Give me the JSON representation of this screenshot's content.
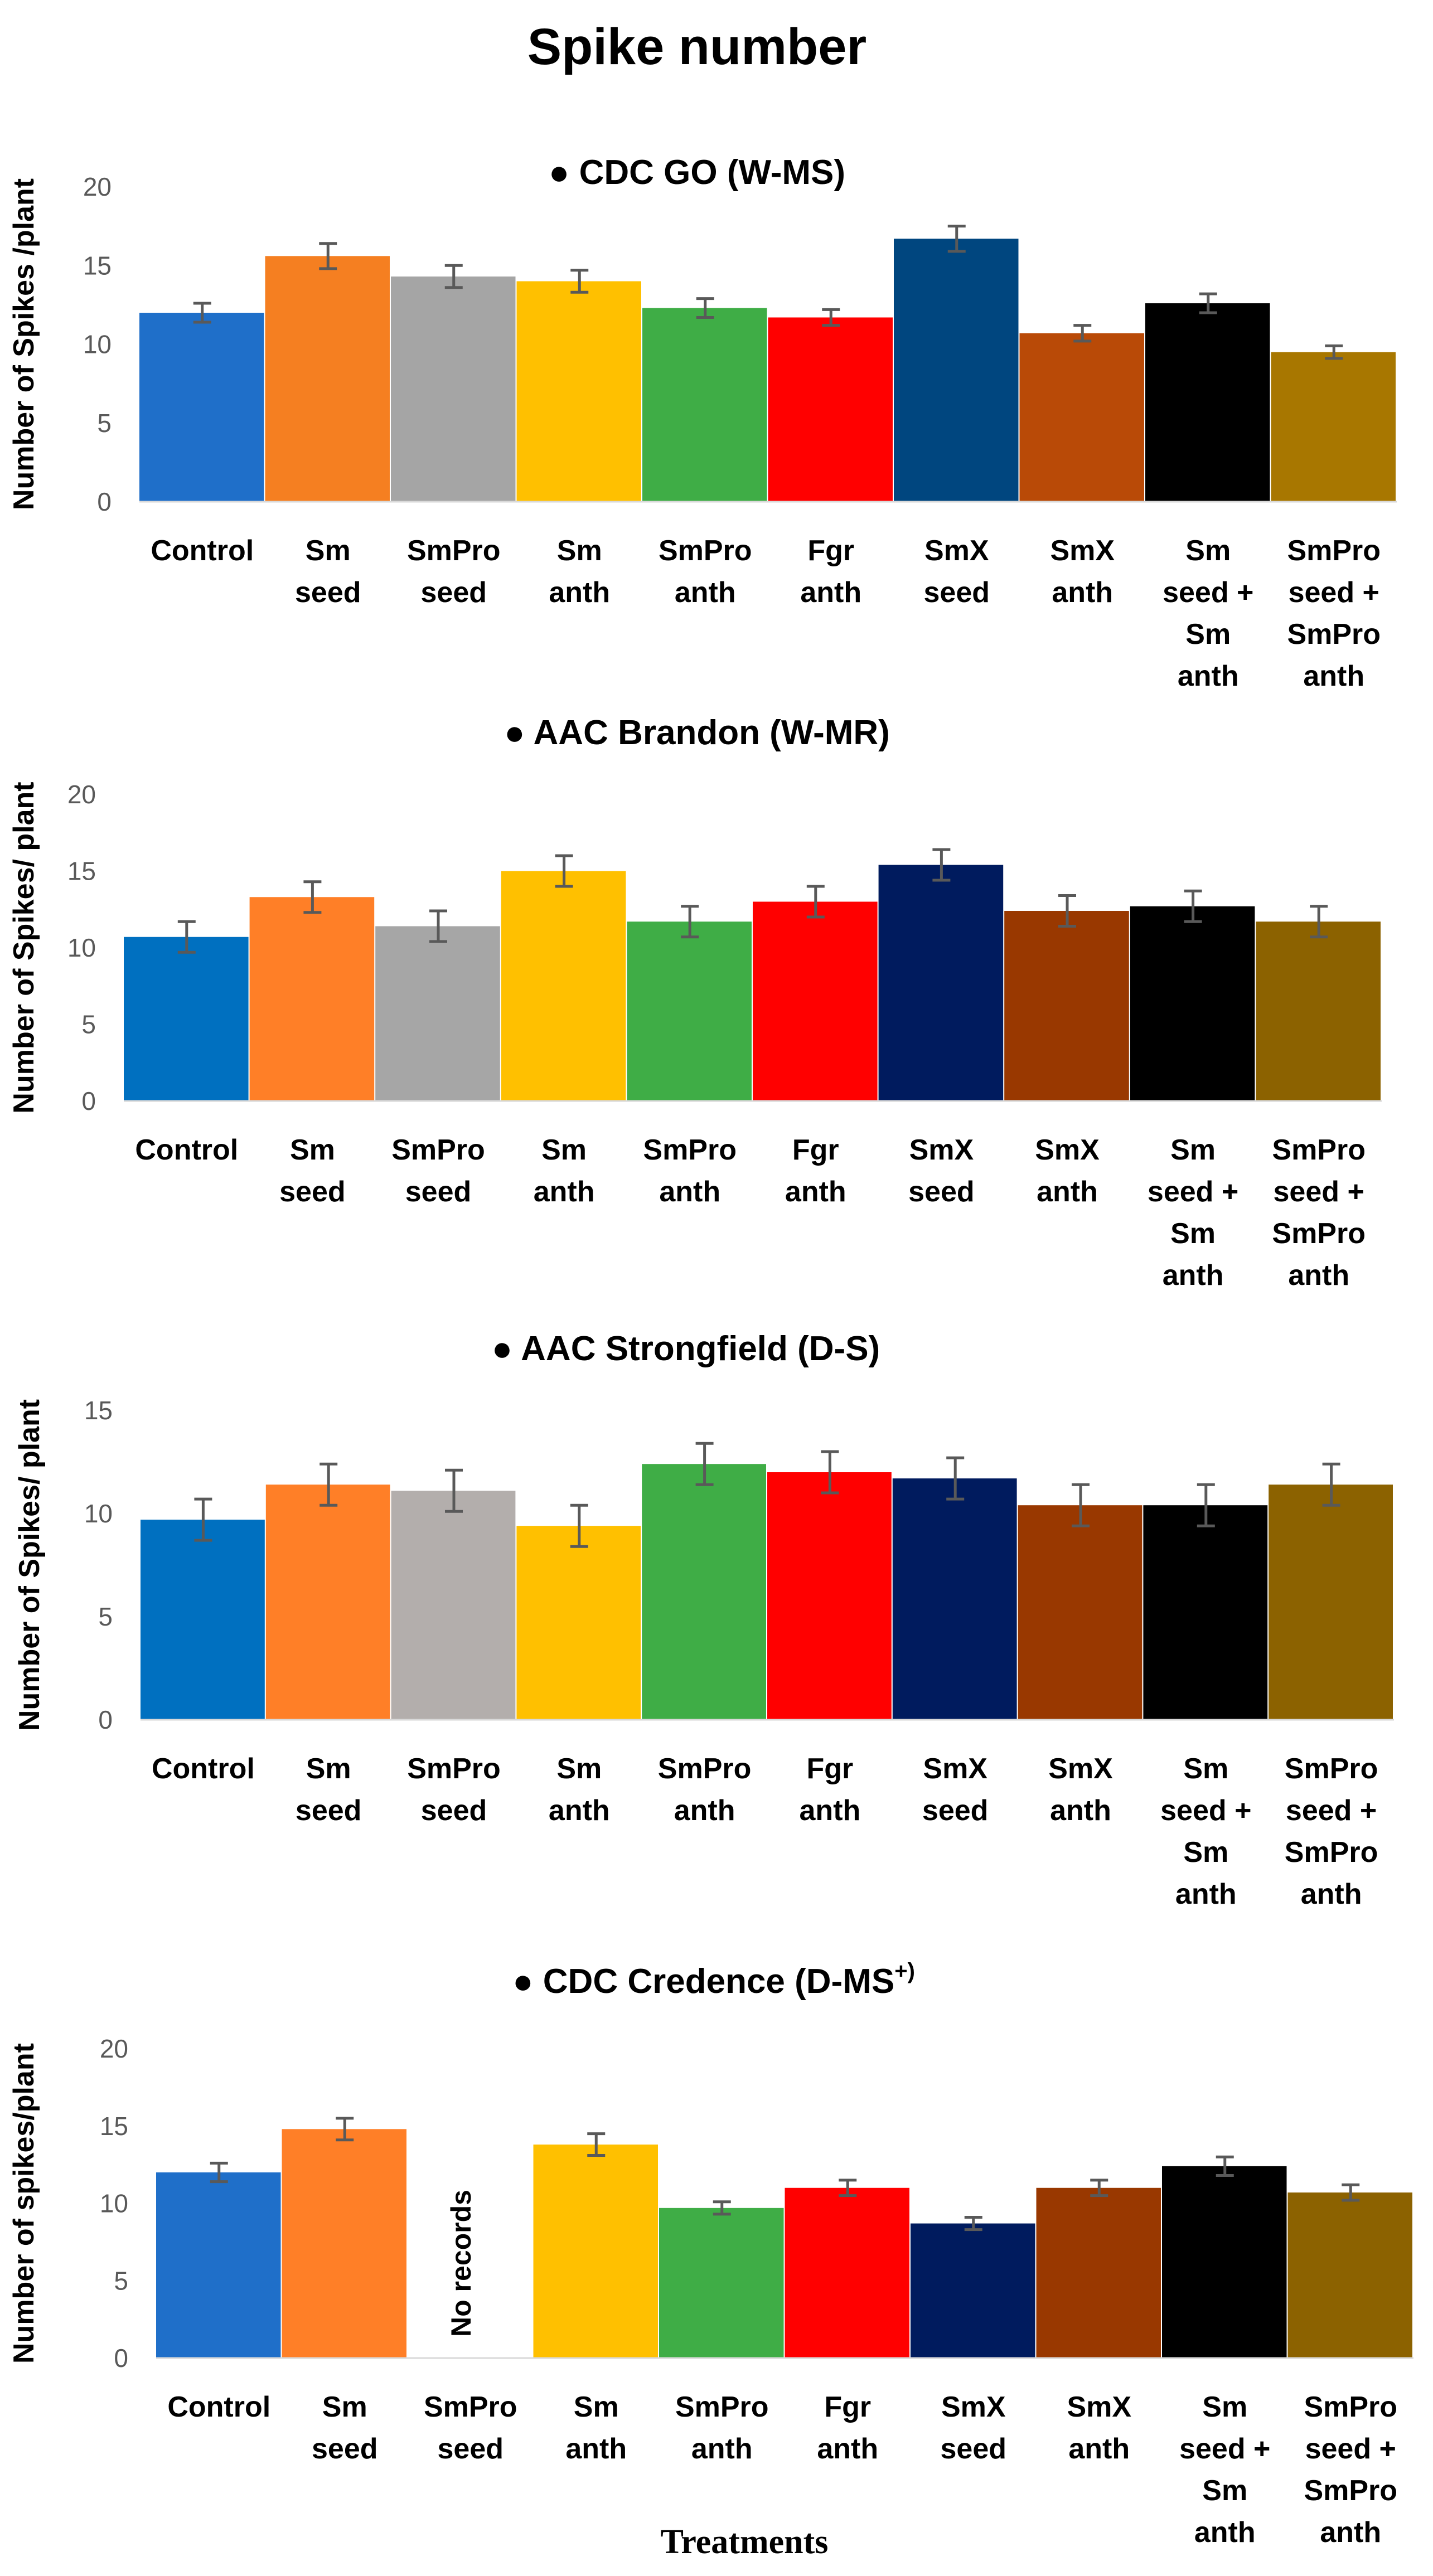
{
  "figure_title": "Spike number",
  "x_axis_label": "Treatments",
  "chart_data": [
    {
      "type": "bar",
      "title": "CDC GO (W-MS)",
      "ylabel": "Number of Spikes /plant",
      "ylim": [
        0,
        20
      ],
      "yticks": [
        0,
        5,
        10,
        15,
        20
      ],
      "categories": [
        "Control",
        "Sm seed",
        "SmPro seed",
        "Sm anth",
        "SmPro anth",
        "Fgr anth",
        "SmX seed",
        "SmX anth",
        "Sm seed + Sm anth",
        "SmPro seed + SmPro anth"
      ],
      "category_lines": [
        [
          "Control"
        ],
        [
          "Sm",
          "seed"
        ],
        [
          "SmPro",
          "seed"
        ],
        [
          "Sm",
          "anth"
        ],
        [
          "SmPro",
          "anth"
        ],
        [
          "Fgr",
          "anth"
        ],
        [
          "SmX",
          "seed"
        ],
        [
          "SmX",
          "anth"
        ],
        [
          "Sm",
          "seed +",
          "Sm",
          "anth"
        ],
        [
          "SmPro",
          "seed +",
          "SmPro",
          "anth"
        ]
      ],
      "values": [
        12.0,
        15.6,
        14.3,
        14.0,
        12.3,
        11.7,
        16.7,
        10.7,
        12.6,
        9.5
      ],
      "errors": [
        0.6,
        0.8,
        0.7,
        0.7,
        0.6,
        0.5,
        0.8,
        0.5,
        0.6,
        0.4
      ],
      "colors": [
        "#1f6fc9",
        "#f57f21",
        "#a5a5a5",
        "#ffc000",
        "#3fad46",
        "#ff0000",
        "#00467f",
        "#b94a07",
        "#000000",
        "#a87700"
      ]
    },
    {
      "type": "bar",
      "title": "AAC Brandon  (W-MR)",
      "ylabel": "Number of Spikes/ plant",
      "ylim": [
        0,
        20
      ],
      "yticks": [
        0,
        5,
        10,
        15,
        20
      ],
      "categories": [
        "Control",
        "Sm seed",
        "SmPro seed",
        "Sm anth",
        "SmPro anth",
        "Fgr anth",
        "SmX seed",
        "SmX anth",
        "Sm seed + Sm anth",
        "SmPro seed + SmPro anth"
      ],
      "category_lines": [
        [
          "Control"
        ],
        [
          "Sm",
          "seed"
        ],
        [
          "SmPro",
          "seed"
        ],
        [
          "Sm",
          "anth"
        ],
        [
          "SmPro",
          "anth"
        ],
        [
          "Fgr",
          "anth"
        ],
        [
          "SmX",
          "seed"
        ],
        [
          "SmX",
          "anth"
        ],
        [
          "Sm",
          "seed +",
          "Sm",
          "anth"
        ],
        [
          "SmPro",
          "seed +",
          "SmPro",
          "anth"
        ]
      ],
      "values": [
        10.7,
        13.3,
        11.4,
        15.0,
        11.7,
        13.0,
        15.4,
        12.4,
        12.7,
        11.7
      ],
      "errors": [
        1.0,
        1.0,
        1.0,
        1.0,
        1.0,
        1.0,
        1.0,
        1.0,
        1.0,
        1.0
      ],
      "colors": [
        "#0070c0",
        "#ff7f27",
        "#a6a6a6",
        "#ffc000",
        "#3fad46",
        "#ff0000",
        "#001b5e",
        "#993800",
        "#000000",
        "#8c6200"
      ]
    },
    {
      "type": "bar",
      "title": "AAC Strongfield (D-S)",
      "ylabel": "Number of Spikes/ plant",
      "ylim": [
        0,
        15
      ],
      "yticks": [
        0,
        5,
        10,
        15
      ],
      "categories": [
        "Control",
        "Sm seed",
        "SmPro seed",
        "Sm anth",
        "SmPro anth",
        "Fgr anth",
        "SmX seed",
        "SmX anth",
        "Sm seed + Sm anth",
        "SmPro seed + SmPro anth"
      ],
      "category_lines": [
        [
          "Control"
        ],
        [
          "Sm",
          "seed"
        ],
        [
          "SmPro",
          "seed"
        ],
        [
          "Sm",
          "anth"
        ],
        [
          "SmPro",
          "anth"
        ],
        [
          "Fgr",
          "anth"
        ],
        [
          "SmX",
          "seed"
        ],
        [
          "SmX",
          "anth"
        ],
        [
          "Sm",
          "seed +",
          "Sm",
          "anth"
        ],
        [
          "SmPro",
          "seed +",
          "SmPro",
          "anth"
        ]
      ],
      "values": [
        9.7,
        11.4,
        11.1,
        9.4,
        12.4,
        12.0,
        11.7,
        10.4,
        10.4,
        11.4
      ],
      "errors": [
        1.0,
        1.0,
        1.0,
        1.0,
        1.0,
        1.0,
        1.0,
        1.0,
        1.0,
        1.0
      ],
      "colors": [
        "#0070c0",
        "#ff7f27",
        "#b3aeac",
        "#ffc000",
        "#3fad46",
        "#ff0000",
        "#001b5e",
        "#993800",
        "#000000",
        "#8c6200"
      ]
    },
    {
      "type": "bar",
      "title": "CDC Credence (D-MS",
      "title_superscript": "+)",
      "ylabel": "Number of spikes/plant",
      "ylim": [
        0,
        20
      ],
      "yticks": [
        0,
        5,
        10,
        15,
        20
      ],
      "categories": [
        "Control",
        "Sm seed",
        "SmPro seed",
        "Sm anth",
        "SmPro anth",
        "Fgr anth",
        "SmX seed",
        "SmX anth",
        "Sm seed + Sm anth",
        "SmPro seed + SmPro anth"
      ],
      "category_lines": [
        [
          "Control"
        ],
        [
          "Sm",
          "seed"
        ],
        [
          "SmPro",
          "seed"
        ],
        [
          "Sm",
          "anth"
        ],
        [
          "SmPro",
          "anth"
        ],
        [
          "Fgr",
          "anth"
        ],
        [
          "SmX",
          "seed"
        ],
        [
          "SmX",
          "anth"
        ],
        [
          "Sm",
          "seed +",
          "Sm",
          "anth"
        ],
        [
          "SmPro",
          "seed +",
          "SmPro",
          "anth"
        ]
      ],
      "values": [
        12.0,
        14.8,
        null,
        13.8,
        9.7,
        11.0,
        8.7,
        11.0,
        12.4,
        10.7
      ],
      "errors": [
        0.6,
        0.7,
        null,
        0.7,
        0.4,
        0.5,
        0.4,
        0.5,
        0.6,
        0.5
      ],
      "colors": [
        "#1f6fc9",
        "#ff7f27",
        "#ffffff",
        "#ffc000",
        "#3fad46",
        "#ff0000",
        "#001b5e",
        "#993800",
        "#000000",
        "#8c6200"
      ],
      "missing_note": "No records"
    }
  ]
}
